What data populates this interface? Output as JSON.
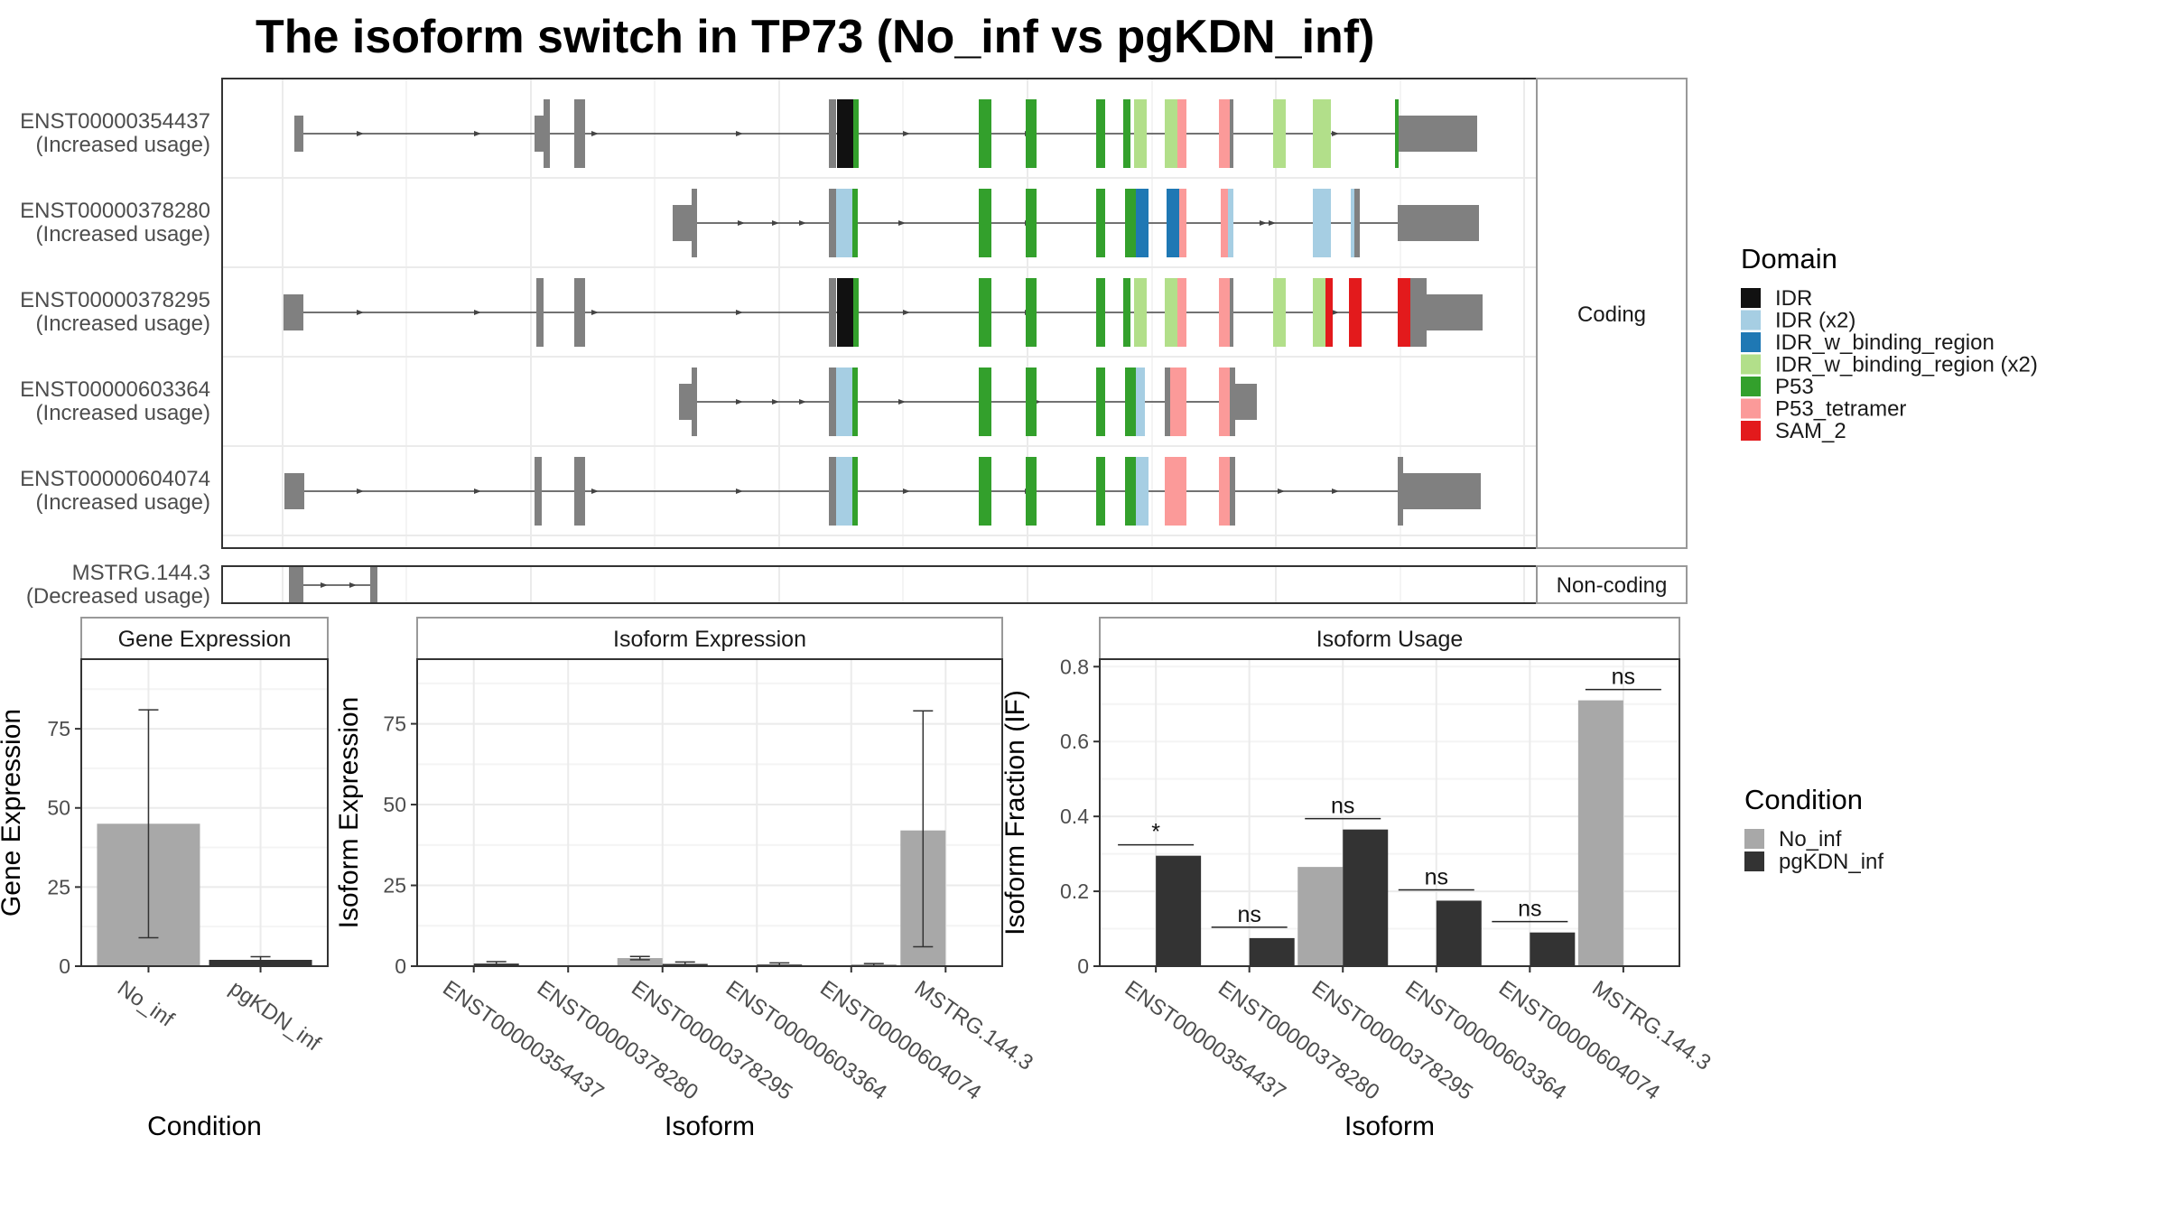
{
  "title": "The isoform switch in TP73 (No_inf vs pgKDN_inf)",
  "colors": {
    "IDR": "#111111",
    "IDR (x2)": "#a6cee3",
    "IDR_w_binding_region": "#1f78b4",
    "IDR_w_binding_region (x2)": "#b2df8a",
    "P53": "#33a02c",
    "P53_tetramer": "#fb9a99",
    "SAM_2": "#e31a1c",
    "exon": "#808080",
    "No_inf": "#a8a8a8",
    "pgKDN_inf": "#333333"
  },
  "chart_data": [
    {
      "type": "gene_structure",
      "facets": [
        "Coding",
        "Non-coding"
      ],
      "transcripts": [
        {
          "id": "ENST00000354437",
          "label": "(Increased usage)",
          "facet": "Coding"
        },
        {
          "id": "ENST00000378280",
          "label": "(Increased usage)",
          "facet": "Coding"
        },
        {
          "id": "ENST00000378295",
          "label": "(Increased usage)",
          "facet": "Coding"
        },
        {
          "id": "ENST00000603364",
          "label": "(Increased usage)",
          "facet": "Coding"
        },
        {
          "id": "ENST00000604074",
          "label": "(Increased usage)",
          "facet": "Coding"
        },
        {
          "id": "MSTRG.144.3",
          "label": "(Decreased usage)",
          "facet": "Non-coding"
        }
      ],
      "legend": {
        "title": "Domain",
        "entries": [
          "IDR",
          "IDR (x2)",
          "IDR_w_binding_region",
          "IDR_w_binding_region (x2)",
          "P53",
          "P53_tetramer",
          "SAM_2"
        ]
      }
    },
    {
      "type": "bar",
      "title": "Gene Expression",
      "xlabel": "Condition",
      "ylabel": "Gene Expression",
      "categories": [
        "No_inf",
        "pgKDN_inf"
      ],
      "values": [
        45,
        2
      ],
      "errors": [
        [
          9,
          81
        ],
        [
          1,
          3
        ]
      ],
      "ylim": [
        0,
        97
      ],
      "yticks": [
        0,
        25,
        50,
        75
      ]
    },
    {
      "type": "bar",
      "title": "Isoform Expression",
      "xlabel": "Isoform",
      "ylabel": "Isoform Expression",
      "categories": [
        "ENST00000354437",
        "ENST00000378280",
        "ENST00000378295",
        "ENST00000603364",
        "ENST00000604074",
        "MSTRG.144.3"
      ],
      "series": [
        {
          "name": "No_inf",
          "values": [
            0,
            0,
            2.5,
            0,
            0,
            42
          ],
          "errors": [
            null,
            null,
            [
              2,
              3
            ],
            null,
            null,
            [
              6,
              79
            ]
          ]
        },
        {
          "name": "pgKDN_inf",
          "values": [
            0.8,
            0.3,
            0.7,
            0.5,
            0.4,
            0
          ],
          "errors": [
            [
              0.3,
              1.4
            ],
            null,
            [
              0.2,
              1.3
            ],
            [
              0.1,
              1
            ],
            [
              0.1,
              0.8
            ],
            null
          ]
        }
      ],
      "ylim": [
        0,
        95
      ],
      "yticks": [
        0,
        25,
        50,
        75
      ]
    },
    {
      "type": "bar",
      "title": "Isoform Usage",
      "xlabel": "Isoform",
      "ylabel": "Isoform Fraction (IF)",
      "categories": [
        "ENST00000354437",
        "ENST00000378280",
        "ENST00000378295",
        "ENST00000603364",
        "ENST00000604074",
        "MSTRG.144.3"
      ],
      "series": [
        {
          "name": "No_inf",
          "values": [
            0,
            0,
            0.265,
            0,
            0,
            0.71
          ]
        },
        {
          "name": "pgKDN_inf",
          "values": [
            0.295,
            0.075,
            0.365,
            0.175,
            0.09,
            0
          ]
        }
      ],
      "significance": [
        "*",
        "ns",
        "ns",
        "ns",
        "ns",
        "ns"
      ],
      "ylim": [
        0,
        0.82
      ],
      "yticks": [
        0.0,
        0.2,
        0.4,
        0.6,
        0.8
      ],
      "legend": {
        "title": "Condition",
        "entries": [
          "No_inf",
          "pgKDN_inf"
        ]
      }
    }
  ]
}
